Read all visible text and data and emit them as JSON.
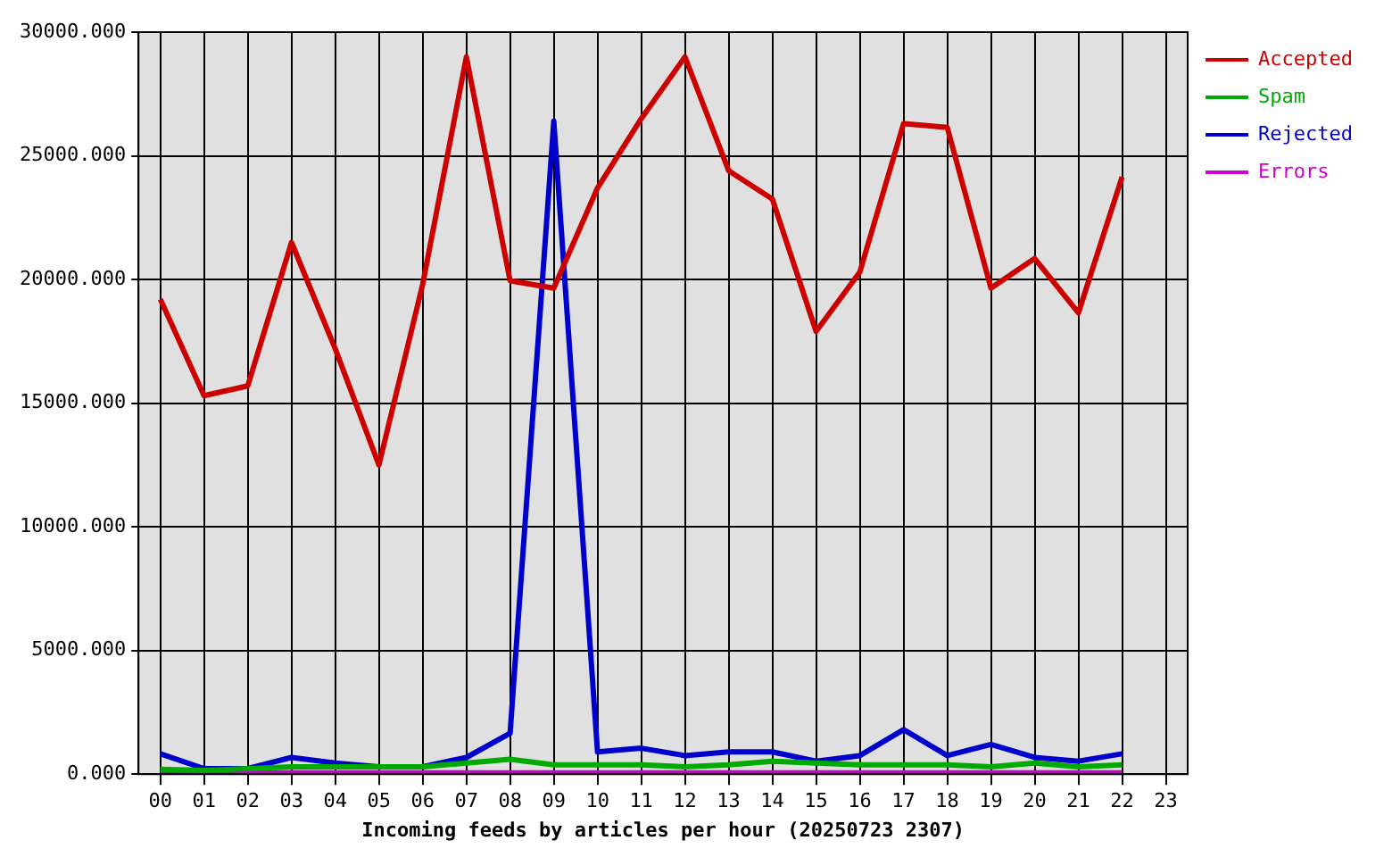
{
  "chart_data": {
    "type": "line",
    "xlabel": "Incoming feeds by articles per hour (20250723 2307)",
    "categories": [
      "00",
      "01",
      "02",
      "03",
      "04",
      "05",
      "06",
      "07",
      "08",
      "09",
      "10",
      "11",
      "12",
      "13",
      "14",
      "15",
      "16",
      "17",
      "18",
      "19",
      "20",
      "21",
      "22",
      "23"
    ],
    "series": [
      {
        "name": "Accepted",
        "color": "#cc0000",
        "values": [
          19200,
          15300,
          15700,
          21500,
          17200,
          12500,
          19800,
          29000,
          19950,
          19650,
          23700,
          26500,
          29000,
          24400,
          23250,
          17900,
          20300,
          26300,
          26150,
          19650,
          20850,
          18650,
          24150,
          null
        ]
      },
      {
        "name": "Spam",
        "color": "#00aa00",
        "values": [
          200,
          150,
          225,
          300,
          300,
          300,
          300,
          450,
          600,
          375,
          375,
          375,
          300,
          375,
          525,
          450,
          375,
          375,
          375,
          300,
          450,
          300,
          375,
          null
        ]
      },
      {
        "name": "Rejected",
        "color": "#0000cc",
        "values": [
          825,
          225,
          225,
          675,
          450,
          300,
          300,
          675,
          1650,
          26400,
          900,
          1050,
          750,
          900,
          900,
          525,
          750,
          1800,
          750,
          1200,
          675,
          525,
          825,
          null
        ]
      },
      {
        "name": "Errors",
        "color": "#cc00cc",
        "values": [
          50,
          50,
          50,
          50,
          50,
          50,
          50,
          50,
          50,
          50,
          50,
          50,
          50,
          50,
          50,
          50,
          50,
          50,
          50,
          50,
          50,
          50,
          50,
          null
        ]
      }
    ],
    "ylim": [
      0,
      30000
    ],
    "yticks": [
      {
        "value": 0,
        "label": "0.000"
      },
      {
        "value": 5000,
        "label": "5000.000"
      },
      {
        "value": 10000,
        "label": "10000.000"
      },
      {
        "value": 15000,
        "label": "15000.000"
      },
      {
        "value": 20000,
        "label": "20000.000"
      },
      {
        "value": 25000,
        "label": "25000.000"
      },
      {
        "value": 30000,
        "label": "30000.000"
      }
    ],
    "grid": true,
    "legend": "top right",
    "marker": "none",
    "line_style": "solid"
  }
}
